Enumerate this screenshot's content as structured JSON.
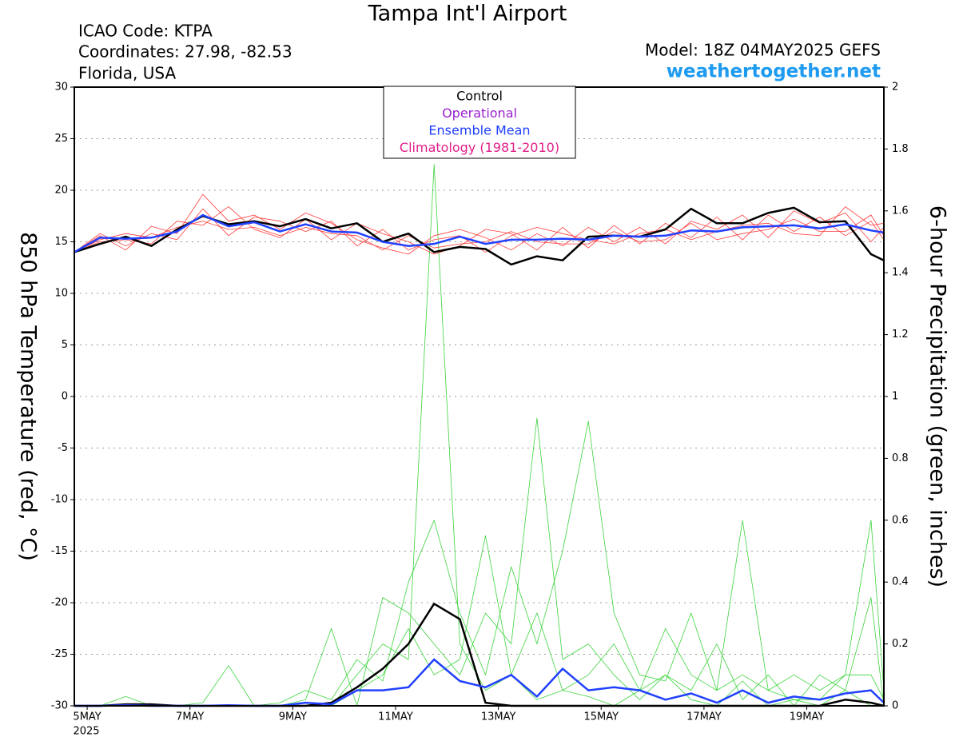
{
  "chart_data": {
    "type": "line",
    "title": "Tampa Int'l Airport",
    "info_left": [
      "ICAO Code: KTPA",
      "Coordinates: 27.98, -82.53",
      "Florida, USA"
    ],
    "model": "Model: 18Z 04MAY2025 GEFS",
    "site": "weathertogether.net",
    "site_color": "#1e9bf0",
    "y_label": "850 hPa Temperature (red, °C)",
    "y2_label": "6-hour Precipitation (green, inches)",
    "year_label": "2025",
    "grid": true,
    "legend": [
      {
        "name": "Control",
        "color": "#000000"
      },
      {
        "name": "Operational",
        "color": "#9a1fd0"
      },
      {
        "name": "Ensemble Mean",
        "color": "#2040ff"
      },
      {
        "name": "Climatology (1981-2010)",
        "color": "#e0208a"
      }
    ],
    "xlim": [
      -6,
      372
    ],
    "xticks": [
      {
        "value": 0,
        "label": "5MAY"
      },
      {
        "value": 48,
        "label": "7MAY"
      },
      {
        "value": 96,
        "label": "9MAY"
      },
      {
        "value": 144,
        "label": "11MAY"
      },
      {
        "value": 192,
        "label": "13MAY"
      },
      {
        "value": 240,
        "label": "15MAY"
      },
      {
        "value": 288,
        "label": "17MAY"
      },
      {
        "value": 336,
        "label": "19MAY"
      }
    ],
    "ylim": [
      -30,
      30
    ],
    "yticks": [
      -30,
      -25,
      -20,
      -15,
      -10,
      -5,
      0,
      5,
      10,
      15,
      20,
      25,
      30
    ],
    "y2lim": [
      0,
      2
    ],
    "y2ticks": [
      0,
      0.2,
      0.4,
      0.6,
      0.8,
      1,
      1.2,
      1.4,
      1.6,
      1.8,
      2
    ],
    "x": [
      -6,
      6,
      18,
      30,
      42,
      54,
      66,
      78,
      90,
      102,
      114,
      126,
      138,
      150,
      162,
      174,
      186,
      198,
      210,
      222,
      234,
      246,
      258,
      270,
      282,
      294,
      306,
      318,
      330,
      342,
      354,
      366,
      372
    ],
    "temperature": {
      "members_color": "#ff3a3a",
      "members": [
        [
          14,
          15.6,
          14.2,
          16.5,
          15.8,
          19.6,
          17,
          17.6,
          16.2,
          17.8,
          16.8,
          15.2,
          14.4,
          13.8,
          15.6,
          16.2,
          15.4,
          14.2,
          15.8,
          14.6,
          16.4,
          15,
          16.4,
          14.8,
          17,
          16.2,
          17.6,
          15.4,
          18,
          16.8,
          17.8,
          15,
          16.4
        ],
        [
          14,
          15,
          15.2,
          14.8,
          17,
          16.6,
          18.4,
          16.2,
          15.4,
          17.2,
          15.2,
          16.8,
          15.8,
          15,
          13.8,
          14.6,
          16.2,
          15.8,
          14.2,
          16.4,
          14.4,
          16.6,
          14.8,
          16.8,
          15.4,
          17.4,
          15.2,
          17.6,
          16,
          17.4,
          15.6,
          17,
          15.2
        ],
        [
          14,
          15.8,
          14.6,
          15.8,
          15.2,
          18.2,
          15.6,
          17.4,
          17,
          16,
          17,
          14.6,
          16.2,
          14.2,
          15.2,
          15.6,
          14,
          15.6,
          16.4,
          15.8,
          15.2,
          14.8,
          15.8,
          16.2,
          15.2,
          16,
          16.6,
          16.8,
          15.8,
          15.6,
          18.4,
          16.6,
          16.8
        ],
        [
          14,
          15.2,
          15.8,
          15.4,
          16.4,
          17,
          16.2,
          16.4,
          15.6,
          16.4,
          15.8,
          15.6,
          14.2,
          15.6,
          14.4,
          14.8,
          15,
          16,
          15,
          14.8,
          14.8,
          16,
          15,
          15.2,
          16.8,
          15.2,
          15.8,
          16.2,
          17.2,
          16,
          16,
          17.6,
          15.6
        ]
      ],
      "control": [
        14,
        14.8,
        15.5,
        14.6,
        16.2,
        17.5,
        16.7,
        17,
        16.5,
        17.2,
        16.3,
        16.8,
        15,
        15.8,
        14,
        14.5,
        14.3,
        12.8,
        13.6,
        13.2,
        15.5,
        15.6,
        15.5,
        16.2,
        18.2,
        16.8,
        16.8,
        17.8,
        18.3,
        16.9,
        17,
        13.8,
        13.2
      ],
      "ensemble_mean": [
        14,
        15.4,
        15.3,
        15.4,
        16,
        17.6,
        16.5,
        16.9,
        16,
        16.7,
        16,
        15.9,
        15,
        14.6,
        14.8,
        15.5,
        14.8,
        15.2,
        15.2,
        15.3,
        15.2,
        15.6,
        15.5,
        15.6,
        16.1,
        16,
        16.4,
        16.5,
        16.6,
        16.3,
        16.7,
        16.1,
        15.9
      ]
    },
    "precipitation": {
      "members_color": "#3cd43c",
      "members": [
        [
          0,
          0,
          0.03,
          0,
          0,
          0,
          0,
          0,
          0,
          0,
          0,
          0.1,
          0.2,
          0.15,
          1.75,
          0.2,
          0.05,
          0.1,
          0.02,
          0.05,
          0.03,
          0,
          0.05,
          0.1,
          0.02,
          0,
          0.08,
          0,
          0.02,
          0,
          0.05,
          0,
          0
        ],
        [
          0,
          0,
          0,
          0,
          0,
          0.01,
          0.13,
          0,
          0,
          0.02,
          0.25,
          0,
          0.35,
          0.3,
          0.2,
          0.1,
          0.3,
          0.2,
          0.93,
          0.15,
          0.2,
          0.1,
          0.02,
          0.1,
          0.05,
          0.2,
          0.02,
          0.1,
          0,
          0.1,
          0.05,
          0.35,
          0
        ],
        [
          0,
          0,
          0,
          0,
          0,
          0,
          0,
          0,
          0.01,
          0.05,
          0.02,
          0.15,
          0.08,
          0.4,
          0.6,
          0.3,
          0.1,
          0.45,
          0.2,
          0.5,
          0.92,
          0.3,
          0.1,
          0.08,
          0.3,
          0.05,
          0.1,
          0.05,
          0.1,
          0.05,
          0.1,
          0.1,
          0.02
        ],
        [
          0,
          0,
          0,
          0,
          0,
          0,
          0,
          0,
          0,
          0,
          0,
          0.05,
          0.1,
          0.25,
          0.1,
          0.15,
          0.55,
          0.1,
          0.3,
          0.05,
          0.1,
          0.2,
          0.05,
          0.25,
          0.1,
          0.05,
          0.6,
          0.05,
          0.02,
          0.02,
          0.1,
          0.6,
          0.05
        ]
      ],
      "control": [
        0,
        0,
        0.005,
        0.005,
        0,
        0,
        0,
        0,
        0,
        0,
        0.01,
        0.06,
        0.12,
        0.2,
        0.33,
        0.28,
        0.01,
        0,
        0,
        0,
        0,
        0,
        0,
        0,
        0,
        0,
        0,
        0,
        0,
        0,
        0.02,
        0.01,
        0
      ],
      "ensemble_mean": [
        0,
        0,
        0.002,
        0,
        0,
        0,
        0.002,
        0,
        0,
        0.01,
        0.005,
        0.05,
        0.05,
        0.06,
        0.15,
        0.08,
        0.06,
        0.1,
        0.03,
        0.12,
        0.05,
        0.06,
        0.05,
        0.02,
        0.04,
        0.01,
        0.05,
        0.01,
        0.03,
        0.02,
        0.04,
        0.05,
        0.01
      ]
    }
  }
}
